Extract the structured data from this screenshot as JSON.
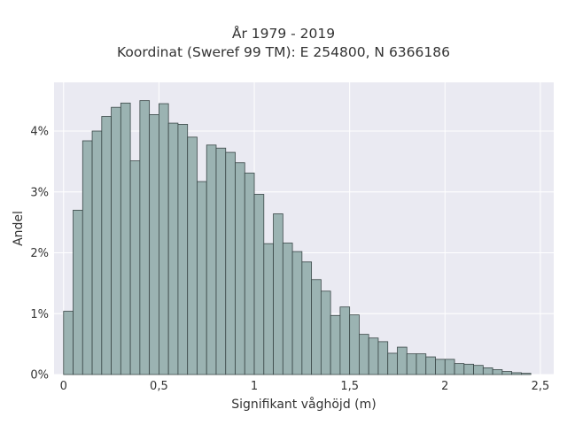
{
  "chart_data": {
    "type": "bar",
    "title": "År 1979 - 2019",
    "subtitle": "Koordinat (Sweref 99 TM): E 254800, N 6366186",
    "xlabel": "Signifikant våghöjd (m)",
    "ylabel": "Andel",
    "xlim": [
      -0.05,
      2.57
    ],
    "ylim": [
      0,
      4.8
    ],
    "x_ticks": [
      0,
      0.5,
      1,
      1.5,
      2,
      2.5
    ],
    "x_tick_labels": [
      "0",
      "0,5",
      "1",
      "1,5",
      "2",
      "2,5"
    ],
    "y_ticks": [
      0,
      1,
      2,
      3,
      4
    ],
    "y_tick_labels": [
      "0%",
      "1%",
      "2%",
      "3%",
      "4%"
    ],
    "grid": true,
    "bin_width": 0.05,
    "bins_start": 0.0,
    "values": [
      1.04,
      2.7,
      3.84,
      4.0,
      4.24,
      4.39,
      4.46,
      3.51,
      4.5,
      4.27,
      4.45,
      4.13,
      4.11,
      3.9,
      3.17,
      3.77,
      3.72,
      3.65,
      3.48,
      3.31,
      2.96,
      2.15,
      2.64,
      2.16,
      2.02,
      1.85,
      1.56,
      1.37,
      0.97,
      1.11,
      0.98,
      0.66,
      0.6,
      0.54,
      0.35,
      0.45,
      0.34,
      0.34,
      0.29,
      0.25,
      0.25,
      0.18,
      0.17,
      0.15,
      0.11,
      0.08,
      0.05,
      0.03,
      0.02
    ],
    "colors": {
      "bar_fill": "#9bb3b2",
      "bar_stroke": "#3a4747",
      "plot_bg": "#eaeaf2",
      "grid": "#ffffff"
    }
  }
}
